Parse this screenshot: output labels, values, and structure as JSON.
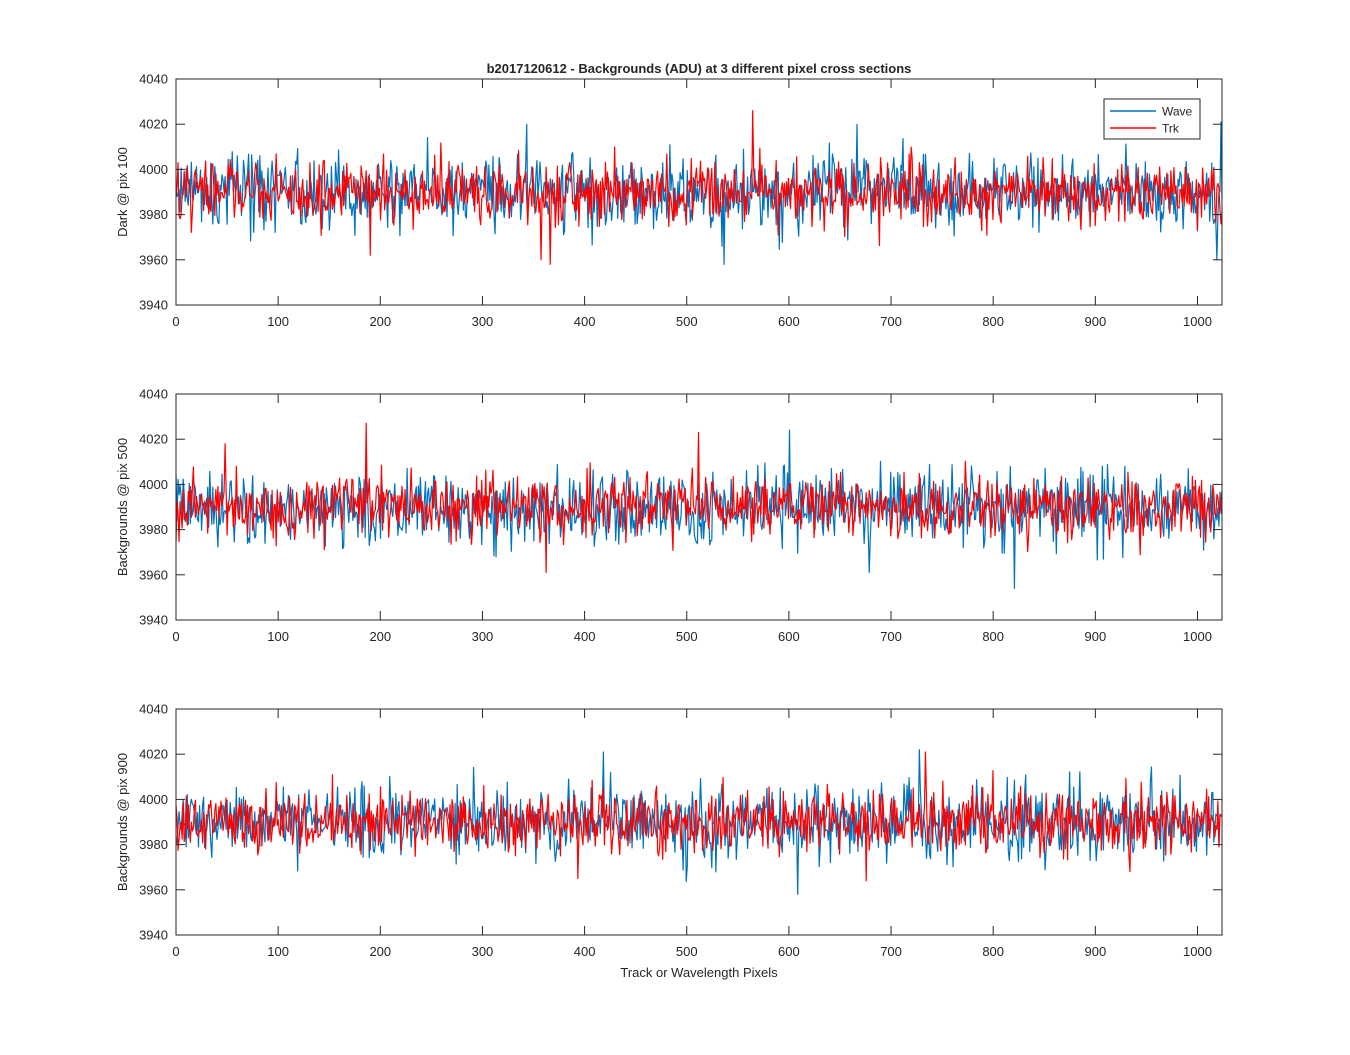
{
  "figure": {
    "title": "b2017120612 - Backgrounds (ADU) at 3 different pixel cross sections",
    "xlabel": "Track or Wavelength Pixels"
  },
  "colors": {
    "wave": "#0072bd",
    "trk": "#ff0000",
    "axis": "#262626"
  },
  "chart_data": [
    {
      "type": "line",
      "ylabel": "Dark @ pix 100",
      "xlim": [
        0,
        1024
      ],
      "ylim": [
        3940,
        4040
      ],
      "xticks": [
        0,
        100,
        200,
        300,
        400,
        500,
        600,
        700,
        800,
        900,
        1000
      ],
      "yticks": [
        3940,
        3960,
        3980,
        4000,
        4020,
        4040
      ],
      "legend": {
        "placement": "top-right",
        "entries": [
          "Wave",
          "Trk"
        ]
      },
      "series": [
        {
          "name": "Wave",
          "n_points": 1024,
          "mean": 3990,
          "std": 8,
          "peaks": [
            [
              343,
              4020
            ],
            [
              666,
              4020
            ],
            [
              1022,
              4021
            ],
            [
              536,
              3958
            ],
            [
              1018,
              3960
            ]
          ]
        },
        {
          "name": "Trk",
          "n_points": 1024,
          "mean": 3990,
          "std": 7,
          "peaks": [
            [
              564,
              4026
            ],
            [
              357,
              3960
            ],
            [
              190,
              3962
            ],
            [
              366,
              3958
            ]
          ]
        }
      ]
    },
    {
      "type": "line",
      "ylabel": "Backgrounds @ pix 500",
      "xlim": [
        0,
        1024
      ],
      "ylim": [
        3940,
        4040
      ],
      "xticks": [
        0,
        100,
        200,
        300,
        400,
        500,
        600,
        700,
        800,
        900,
        1000
      ],
      "yticks": [
        3940,
        3960,
        3980,
        4000,
        4020,
        4040
      ],
      "legend": null,
      "series": [
        {
          "name": "Wave",
          "n_points": 1024,
          "mean": 3990,
          "std": 8,
          "peaks": [
            [
              600,
              4024
            ],
            [
              820,
              3954
            ],
            [
              678,
              3961
            ]
          ]
        },
        {
          "name": "Trk",
          "n_points": 1024,
          "mean": 3990,
          "std": 7,
          "peaks": [
            [
              186,
              4027
            ],
            [
              511,
              4023
            ],
            [
              362,
              3961
            ],
            [
              48,
              4018
            ]
          ]
        }
      ]
    },
    {
      "type": "line",
      "ylabel": "Backgrounds @ pix 900",
      "xlim": [
        0,
        1024
      ],
      "ylim": [
        3940,
        4040
      ],
      "xticks": [
        0,
        100,
        200,
        300,
        400,
        500,
        600,
        700,
        800,
        900,
        1000
      ],
      "yticks": [
        3940,
        3960,
        3980,
        4000,
        4020,
        4040
      ],
      "legend": null,
      "series": [
        {
          "name": "Wave",
          "n_points": 1024,
          "mean": 3990,
          "std": 8,
          "peaks": [
            [
              727,
              4022
            ],
            [
              418,
              4021
            ],
            [
              608,
              3958
            ]
          ]
        },
        {
          "name": "Trk",
          "n_points": 1024,
          "mean": 3990,
          "std": 7,
          "peaks": [
            [
              733,
              4021
            ],
            [
              393,
              3965
            ],
            [
              675,
              3964
            ]
          ]
        }
      ]
    }
  ]
}
